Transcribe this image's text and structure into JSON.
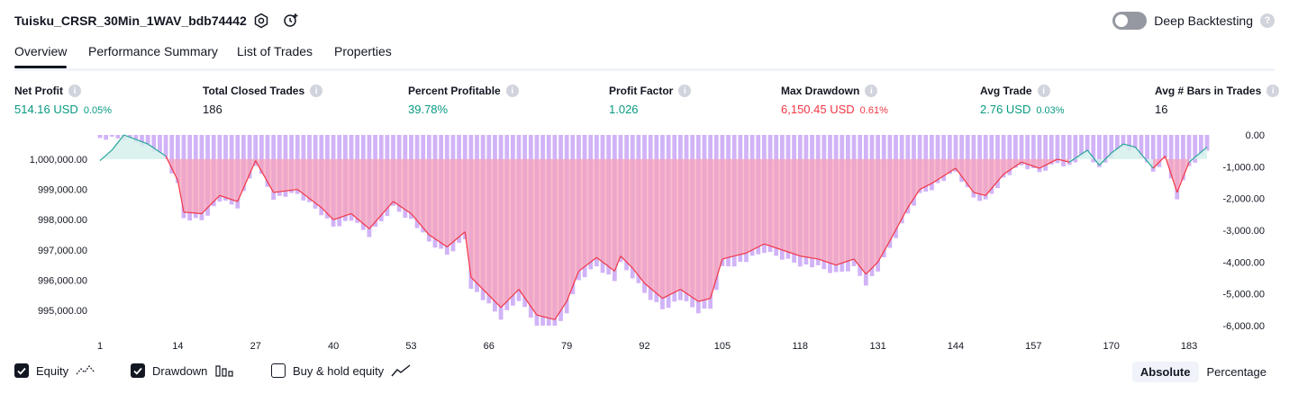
{
  "header": {
    "title": "Tuisku_CRSR_30Min_1WAV_bdb74442",
    "deep_backtesting_label": "Deep Backtesting",
    "help_glyph": "?"
  },
  "tabs": [
    {
      "label": "Overview",
      "active": true
    },
    {
      "label": "Performance Summary"
    },
    {
      "label": "List of Trades"
    },
    {
      "label": "Properties"
    }
  ],
  "metrics": [
    {
      "label": "Net Profit",
      "value": "514.16 USD",
      "pct": "0.05%",
      "color": "#089981"
    },
    {
      "label": "Total Closed Trades",
      "value": "186",
      "color": "#131722"
    },
    {
      "label": "Percent Profitable",
      "value": "39.78%",
      "color": "#089981"
    },
    {
      "label": "Profit Factor",
      "value": "1.026",
      "color": "#089981"
    },
    {
      "label": "Max Drawdown",
      "value": "6,150.45 USD",
      "pct": "0.61%",
      "color": "#f23645"
    },
    {
      "label": "Avg Trade",
      "value": "2.76 USD",
      "pct": "0.03%",
      "color": "#089981"
    },
    {
      "label": "Avg # Bars in Trades",
      "value": "16",
      "color": "#131722"
    }
  ],
  "info_glyph": "i",
  "chart_data": {
    "type": "line",
    "left_axis_ticks": [
      "1,000,000.00",
      "999,000.00",
      "998,000.00",
      "997,000.00",
      "996,000.00",
      "995,000.00"
    ],
    "right_axis_ticks": [
      "0.00",
      "-1,000.00",
      "-2,000.00",
      "-3,000.00",
      "-4,000.00",
      "-5,000.00",
      "-6,000.00"
    ],
    "x_ticks": [
      "1",
      "14",
      "27",
      "40",
      "53",
      "66",
      "79",
      "92",
      "105",
      "118",
      "131",
      "144",
      "157",
      "170",
      "183"
    ],
    "equity_baseline": 1000000,
    "equity_ylim": [
      994500,
      1000800
    ],
    "drawdown_ylim": [
      -6000,
      0
    ],
    "colors": {
      "equity_up": "#26a69a",
      "equity_down": "#f23645",
      "drawdown": "#d1b3f7",
      "fill_up": "#d6f0ec",
      "fill_down": "#f7a3bb"
    },
    "series": [
      {
        "name": "Equity",
        "trades": [
          1,
          3,
          5,
          9,
          12,
          14,
          15,
          18,
          21,
          24,
          27,
          30,
          34,
          38,
          40,
          43,
          46,
          50,
          53,
          56,
          59,
          62,
          63,
          66,
          68,
          71,
          74,
          77,
          79,
          81,
          84,
          87,
          88,
          90,
          92,
          95,
          98,
          101,
          103,
          105,
          107,
          109,
          112,
          115,
          118,
          121,
          124,
          127,
          129,
          131,
          133,
          136,
          138,
          140,
          144,
          147,
          149,
          152,
          155,
          158,
          161,
          163,
          166,
          168,
          170,
          172,
          174,
          177,
          179,
          181,
          183,
          186
        ],
        "values": [
          999950,
          1000300,
          1000800,
          1000500,
          1000100,
          999300,
          998250,
          998200,
          998800,
          998600,
          999950,
          998900,
          999000,
          998400,
          998000,
          998200,
          997700,
          998600,
          998200,
          997500,
          997100,
          997600,
          996100,
          995500,
          995100,
          995700,
          994850,
          994700,
          995300,
          996300,
          996750,
          996300,
          996800,
          996400,
          995900,
          995400,
          995700,
          995300,
          995400,
          996700,
          996800,
          996900,
          997200,
          997000,
          996800,
          996700,
          996500,
          996700,
          996200,
          996600,
          997300,
          998400,
          999000,
          999200,
          999700,
          998900,
          998800,
          999500,
          999900,
          999700,
          1000000,
          999900,
          1000300,
          999800,
          1000200,
          1000500,
          1000400,
          999700,
          1000100,
          998900,
          999900,
          1000400
        ]
      },
      {
        "name": "Drawdown",
        "note": "per-trade drawdown bars"
      }
    ]
  },
  "footer": {
    "equity_label": "Equity",
    "drawdown_label": "Drawdown",
    "buyhold_label": "Buy & hold equity",
    "equity_checked": true,
    "drawdown_checked": true,
    "buyhold_checked": false,
    "absolute_label": "Absolute",
    "percentage_label": "Percentage"
  }
}
